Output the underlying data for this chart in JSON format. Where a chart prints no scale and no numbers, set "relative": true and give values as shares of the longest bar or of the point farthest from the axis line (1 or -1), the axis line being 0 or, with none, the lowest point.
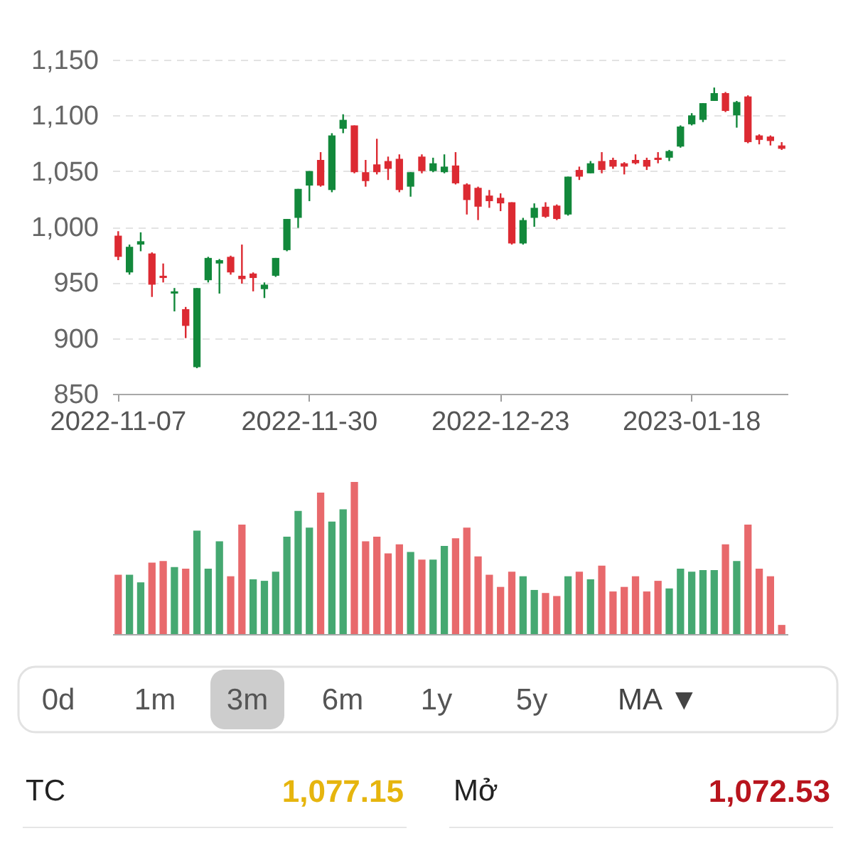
{
  "chart_data": [
    {
      "type": "candlestick",
      "categories": [
        "2022-11-07",
        null,
        null,
        null,
        null,
        null,
        null,
        null,
        null,
        null,
        null,
        null,
        null,
        null,
        null,
        null,
        null,
        "2022-11-30",
        null,
        null,
        null,
        null,
        null,
        null,
        null,
        null,
        null,
        null,
        null,
        null,
        null,
        null,
        null,
        null,
        "2022-12-23",
        null,
        null,
        null,
        null,
        null,
        null,
        null,
        null,
        null,
        null,
        null,
        null,
        null,
        null,
        null,
        null,
        "2023-01-18",
        null,
        null,
        null,
        null,
        null,
        null,
        null,
        null
      ],
      "ohlc": [
        [
          992,
          996,
          970,
          973
        ],
        [
          959,
          984,
          957,
          982
        ],
        [
          984,
          995,
          978,
          987
        ],
        [
          976,
          977,
          937,
          948
        ],
        [
          956,
          967,
          950,
          954
        ],
        [
          940,
          945,
          924,
          942
        ],
        [
          926,
          928,
          900,
          911
        ],
        [
          874,
          945,
          873,
          945
        ],
        [
          952,
          973,
          950,
          972
        ],
        [
          967,
          971,
          940,
          970
        ],
        [
          973,
          974,
          957,
          959
        ],
        [
          956,
          984,
          949,
          953
        ],
        [
          958,
          959,
          942,
          954
        ],
        [
          944,
          950,
          936,
          948
        ],
        [
          956,
          972,
          955,
          972
        ],
        [
          979,
          1007,
          978,
          1007
        ],
        [
          1008,
          1034,
          999,
          1034
        ],
        [
          1037,
          1050,
          1023,
          1050
        ],
        [
          1060,
          1067,
          1036,
          1037
        ],
        [
          1033,
          1084,
          1031,
          1082
        ],
        [
          1088,
          1101,
          1084,
          1096
        ],
        [
          1091,
          1091,
          1048,
          1049
        ],
        [
          1049,
          1060,
          1036,
          1041
        ],
        [
          1056,
          1079,
          1047,
          1049
        ],
        [
          1059,
          1063,
          1042,
          1052
        ],
        [
          1061,
          1065,
          1031,
          1033
        ],
        [
          1036,
          1049,
          1027,
          1049
        ],
        [
          1063,
          1065,
          1048,
          1050
        ],
        [
          1050,
          1062,
          1049,
          1057
        ],
        [
          1049,
          1065,
          1048,
          1054
        ],
        [
          1055,
          1067,
          1038,
          1039
        ],
        [
          1038,
          1039,
          1011,
          1024
        ],
        [
          1035,
          1036,
          1006,
          1018
        ],
        [
          1028,
          1033,
          1017,
          1023
        ],
        [
          1026,
          1030,
          1014,
          1021
        ],
        [
          1022,
          1022,
          984,
          985
        ],
        [
          985,
          1008,
          984,
          1006
        ],
        [
          1008,
          1021,
          1000,
          1017
        ],
        [
          1018,
          1022,
          1008,
          1009
        ],
        [
          1019,
          1020,
          1006,
          1007
        ],
        [
          1011,
          1045,
          1010,
          1045
        ],
        [
          1051,
          1054,
          1042,
          1045
        ],
        [
          1048,
          1059,
          1048,
          1057
        ],
        [
          1059,
          1067,
          1048,
          1051
        ],
        [
          1060,
          1062,
          1052,
          1054
        ],
        [
          1057,
          1058,
          1047,
          1054
        ],
        [
          1060,
          1065,
          1056,
          1057
        ],
        [
          1060,
          1062,
          1051,
          1054
        ],
        [
          1062,
          1067,
          1057,
          1060
        ],
        [
          1062,
          1069,
          1059,
          1068
        ],
        [
          1072,
          1091,
          1071,
          1090
        ],
        [
          1092,
          1102,
          1091,
          1100
        ],
        [
          1096,
          1111,
          1094,
          1111
        ],
        [
          1113,
          1125,
          1113,
          1120
        ],
        [
          1120,
          1121,
          1103,
          1104
        ],
        [
          1100,
          1113,
          1089,
          1112
        ],
        [
          1117,
          1118,
          1075,
          1076
        ],
        [
          1082,
          1083,
          1074,
          1078
        ],
        [
          1081,
          1082,
          1073,
          1077
        ],
        [
          1073,
          1076,
          1069,
          1070
        ]
      ],
      "colors": [
        "#dc2a32",
        "#12883b",
        "#12883b",
        "#dc2a32",
        "#dc2a32",
        "#12883b",
        "#dc2a32",
        "#12883b",
        "#12883b",
        "#12883b",
        "#dc2a32",
        "#dc2a32",
        "#dc2a32",
        "#12883b",
        "#12883b",
        "#12883b",
        "#12883b",
        "#12883b",
        "#dc2a32",
        "#12883b",
        "#12883b",
        "#dc2a32",
        "#dc2a32",
        "#dc2a32",
        "#dc2a32",
        "#dc2a32",
        "#12883b",
        "#dc2a32",
        "#12883b",
        "#12883b",
        "#dc2a32",
        "#dc2a32",
        "#dc2a32",
        "#dc2a32",
        "#dc2a32",
        "#dc2a32",
        "#12883b",
        "#12883b",
        "#dc2a32",
        "#dc2a32",
        "#12883b",
        "#dc2a32",
        "#12883b",
        "#dc2a32",
        "#dc2a32",
        "#dc2a32",
        "#dc2a32",
        "#dc2a32",
        "#dc2a32",
        "#12883b",
        "#12883b",
        "#12883b",
        "#12883b",
        "#12883b",
        "#dc2a32",
        "#12883b",
        "#dc2a32",
        "#dc2a32",
        "#dc2a32",
        "#dc2a32"
      ],
      "ylim": [
        850,
        1150
      ],
      "yticks": [
        850,
        900,
        950,
        {
          "value": 1000,
          "label": "1,000"
        },
        {
          "value": 1050,
          "label": "1,050"
        },
        {
          "value": 1100,
          "label": "1,100"
        },
        {
          "value": 1150,
          "label": "1,150"
        }
      ],
      "grid": "y"
    },
    {
      "type": "bar",
      "relative": true,
      "tick_labels": false,
      "categories": [
        "2022-11-07",
        null,
        null,
        null,
        null,
        null,
        null,
        null,
        null,
        null,
        null,
        null,
        null,
        null,
        null,
        null,
        null,
        "2022-11-30",
        null,
        null,
        null,
        null,
        null,
        null,
        null,
        null,
        null,
        null,
        null,
        null,
        null,
        null,
        null,
        null,
        "2022-12-23",
        null,
        null,
        null,
        null,
        null,
        null,
        null,
        null,
        null,
        null,
        null,
        null,
        null,
        null,
        null,
        null,
        "2023-01-18",
        null,
        null,
        null,
        null,
        null,
        null,
        null,
        null
      ],
      "values": [
        0.39,
        0.39,
        0.34,
        0.47,
        0.48,
        0.44,
        0.43,
        0.68,
        0.43,
        0.61,
        0.38,
        0.72,
        0.36,
        0.35,
        0.41,
        0.64,
        0.81,
        0.7,
        0.93,
        0.74,
        0.82,
        1,
        0.61,
        0.64,
        0.53,
        0.59,
        0.54,
        0.49,
        0.49,
        0.58,
        0.63,
        0.7,
        0.51,
        0.39,
        0.31,
        0.41,
        0.38,
        0.29,
        0.27,
        0.25,
        0.38,
        0.41,
        0.36,
        0.45,
        0.28,
        0.31,
        0.38,
        0.28,
        0.35,
        0.3,
        0.43,
        0.41,
        0.42,
        0.42,
        0.59,
        0.48,
        0.72,
        0.43,
        0.38,
        0.06
      ],
      "colors": [
        "#e8696c",
        "#45a871",
        "#45a871",
        "#e8696c",
        "#e8696c",
        "#45a871",
        "#e8696c",
        "#45a871",
        "#45a871",
        "#45a871",
        "#e8696c",
        "#e8696c",
        "#45a871",
        "#45a871",
        "#45a871",
        "#45a871",
        "#45a871",
        "#45a871",
        "#e8696c",
        "#45a871",
        "#45a871",
        "#e8696c",
        "#e8696c",
        "#e8696c",
        "#e8696c",
        "#e8696c",
        "#45a871",
        "#e8696c",
        "#45a871",
        "#45a871",
        "#e8696c",
        "#e8696c",
        "#e8696c",
        "#e8696c",
        "#e8696c",
        "#e8696c",
        "#45a871",
        "#45a871",
        "#e8696c",
        "#e8696c",
        "#45a871",
        "#e8696c",
        "#45a871",
        "#e8696c",
        "#e8696c",
        "#e8696c",
        "#e8696c",
        "#e8696c",
        "#e8696c",
        "#45a871",
        "#45a871",
        "#45a871",
        "#45a871",
        "#45a871",
        "#e8696c",
        "#45a871",
        "#e8696c",
        "#e8696c",
        "#e8696c",
        "#e8696c"
      ]
    },
    {
      "type": "other",
      "annotations": [
        "0d",
        "1m",
        "3m",
        "6m",
        "1y",
        "5y",
        "MA ▼",
        "TC",
        "1,077.15",
        "Mở",
        "1,072.53"
      ],
      "colors": [
        "#555555",
        "#555555",
        "#555555",
        "#555555",
        "#555555",
        "#555555",
        "#444444",
        "#222222",
        "#e6b50e",
        "#222222",
        "#b8141d"
      ]
    }
  ]
}
